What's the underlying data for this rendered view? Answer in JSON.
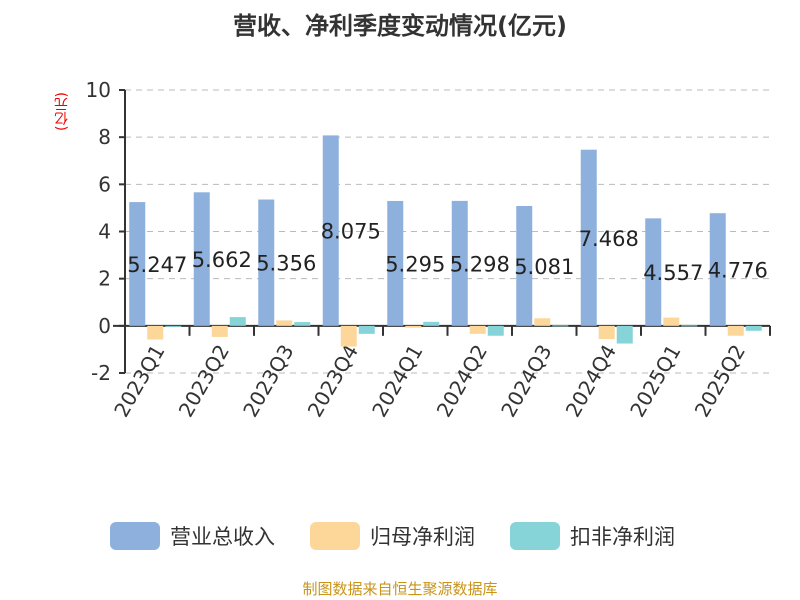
{
  "chart_data": {
    "type": "bar",
    "title": "营收、净利季度变动情况(亿元)",
    "ylabel": "(亿元)",
    "ylim": [
      -2,
      10
    ],
    "yticks": [
      -2,
      0,
      2,
      4,
      6,
      8,
      10
    ],
    "grid": true,
    "legend_position": "bottom",
    "categories": [
      "2023Q1",
      "2023Q2",
      "2023Q3",
      "2023Q4",
      "2024Q1",
      "2024Q2",
      "2024Q3",
      "2024Q4",
      "2025Q1",
      "2025Q2"
    ],
    "series": [
      {
        "name": "营业总收入",
        "color": "#8eb0dd",
        "values": [
          5.247,
          5.662,
          5.356,
          8.075,
          5.295,
          5.298,
          5.081,
          7.468,
          4.557,
          4.776
        ],
        "labels": true
      },
      {
        "name": "归母净利润",
        "color": "#fdd699",
        "values": [
          -0.58,
          -0.47,
          0.23,
          -0.88,
          -0.08,
          -0.34,
          0.32,
          -0.56,
          0.35,
          -0.42
        ]
      },
      {
        "name": "扣非净利润",
        "color": "#86d4d8",
        "values": [
          0.0,
          0.37,
          0.16,
          -0.34,
          0.17,
          -0.42,
          0.02,
          -0.75,
          0.02,
          -0.21
        ]
      }
    ]
  },
  "source": "制图数据来自恒生聚源数据库"
}
